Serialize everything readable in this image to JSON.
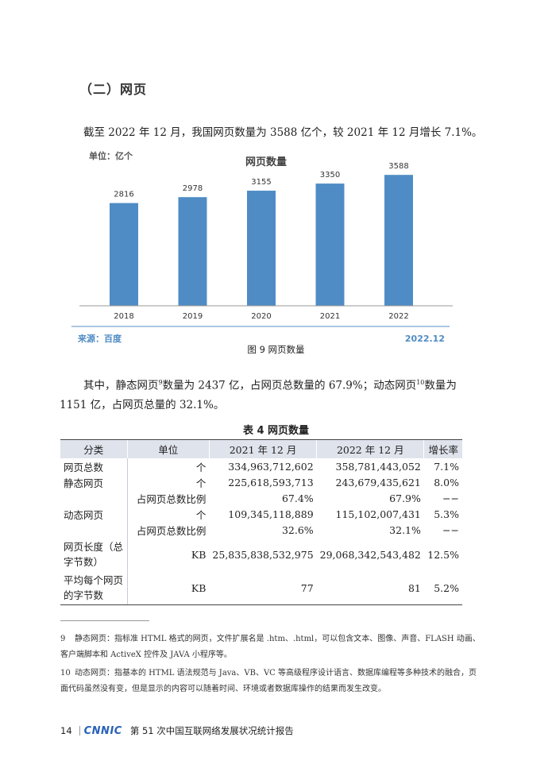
{
  "section_title": "（二）网页",
  "intro_text": "截至 2022 年 12 月，我国网页数量为 3588 亿个，较 2021 年 12 月增长 7.1%。",
  "chart_data": {
    "type": "bar",
    "title": "网页数量",
    "unit_label": "单位：亿个",
    "categories": [
      "2018",
      "2019",
      "2020",
      "2021",
      "2022"
    ],
    "values": [
      2816,
      2978,
      3155,
      3350,
      3588
    ],
    "ylim": [
      0,
      4000
    ],
    "bar_color": "#4f8cc5",
    "source": "来源：百度",
    "date": "2022.12"
  },
  "figure_caption": "图 9  网页数量",
  "para2_a": "其中，静态网页",
  "para2_sup1": "9",
  "para2_b": "数量为 2437 亿，占网页总数量的 67.9%；动态网页",
  "para2_sup2": "10",
  "para2_c": "数量为 1151 亿，占网页总量的 32.1%。",
  "table_title": "表 4  网页数量",
  "table": {
    "headers": [
      "分类",
      "单位",
      "2021 年 12 月",
      "2022 年 12 月",
      "增长率"
    ],
    "rows": [
      [
        "网页总数",
        "个",
        "334,963,712,602",
        "358,781,443,052",
        "7.1%"
      ],
      [
        "静态网页",
        "个",
        "225,618,593,713",
        "243,679,435,621",
        "8.0%"
      ],
      [
        "",
        "占网页总数比例",
        "67.4%",
        "67.9%",
        "−−"
      ],
      [
        "动态网页",
        "个",
        "109,345,118,889",
        "115,102,007,431",
        "5.3%"
      ],
      [
        "",
        "占网页总数比例",
        "32.6%",
        "32.1%",
        "−−"
      ],
      [
        "网页长度（总字节数）",
        "KB",
        "25,835,838,532,975",
        "29,068,342,543,482",
        "12.5%"
      ],
      [
        "平均每个网页的字节数",
        "KB",
        "77",
        "81",
        "5.2%"
      ]
    ]
  },
  "footnotes": [
    {
      "num": "9",
      "text": "静态网页：指标准 HTML 格式的网页，文件扩展名是 .htm、.html，可以包含文本、图像、声音、FLASH 动画、客户端脚本和 ActiveX 控件及 JAVA 小程序等。"
    },
    {
      "num": "10",
      "text": "动态网页：指基本的 HTML 语法规范与 Java、VB、VC 等高级程序设计语言、数据库编程等多种技术的融合，页面代码虽然没有变，但是显示的内容可以随着时间、环境或者数据库操作的结果而发生改变。"
    }
  ],
  "footer": {
    "page_number": "14",
    "logo": "CNNIC",
    "report_title": "第 51 次中国互联网络发展状况统计报告"
  }
}
